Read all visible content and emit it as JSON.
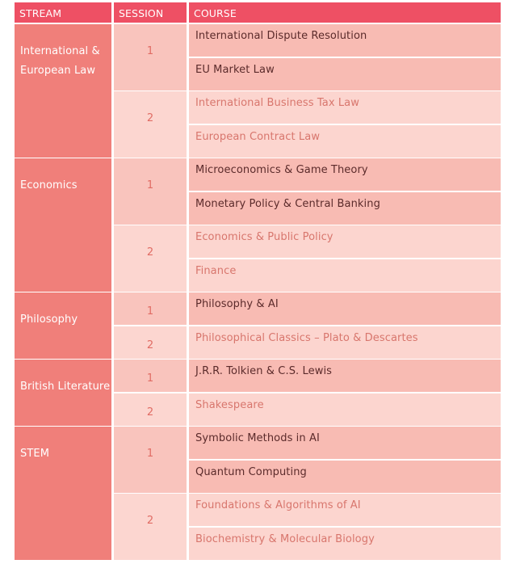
{
  "header": [
    "STREAM",
    "SESSION",
    "COURSE"
  ],
  "streams": [
    {
      "name": "International & European Law",
      "sessions": [
        {
          "number": "1",
          "courses": [
            "International Dispute Resolution",
            "EU Market Law"
          ]
        },
        {
          "number": "2",
          "courses": [
            "International Business Tax Law",
            "European Contract Law"
          ]
        }
      ]
    },
    {
      "name": "Economics",
      "sessions": [
        {
          "number": "1",
          "courses": [
            "Microeconomics & Game Theory",
            "Monetary Policy & Central Banking"
          ]
        },
        {
          "number": "2",
          "courses": [
            "Economics & Public Policy",
            "Finance"
          ]
        }
      ]
    },
    {
      "name": "Philosophy",
      "sessions": [
        {
          "number": "1",
          "courses": [
            "Philosophy & AI"
          ]
        },
        {
          "number": "2",
          "courses": [
            "Philosophical Classics – Plato & Descartes"
          ]
        }
      ]
    },
    {
      "name": "British Literature",
      "sessions": [
        {
          "number": "1",
          "courses": [
            "J.R.R. Tolkien & C.S. Lewis"
          ]
        },
        {
          "number": "2",
          "courses": [
            "Shakespeare"
          ]
        }
      ]
    },
    {
      "name": "STEM",
      "sessions": [
        {
          "number": "1",
          "courses": [
            "Symbolic Methods in AI",
            "Quantum Computing"
          ]
        },
        {
          "number": "2",
          "courses": [
            "Foundations & Algorithms of AI",
            "Biochemistry & Molecular Biology"
          ]
        }
      ]
    }
  ]
}
